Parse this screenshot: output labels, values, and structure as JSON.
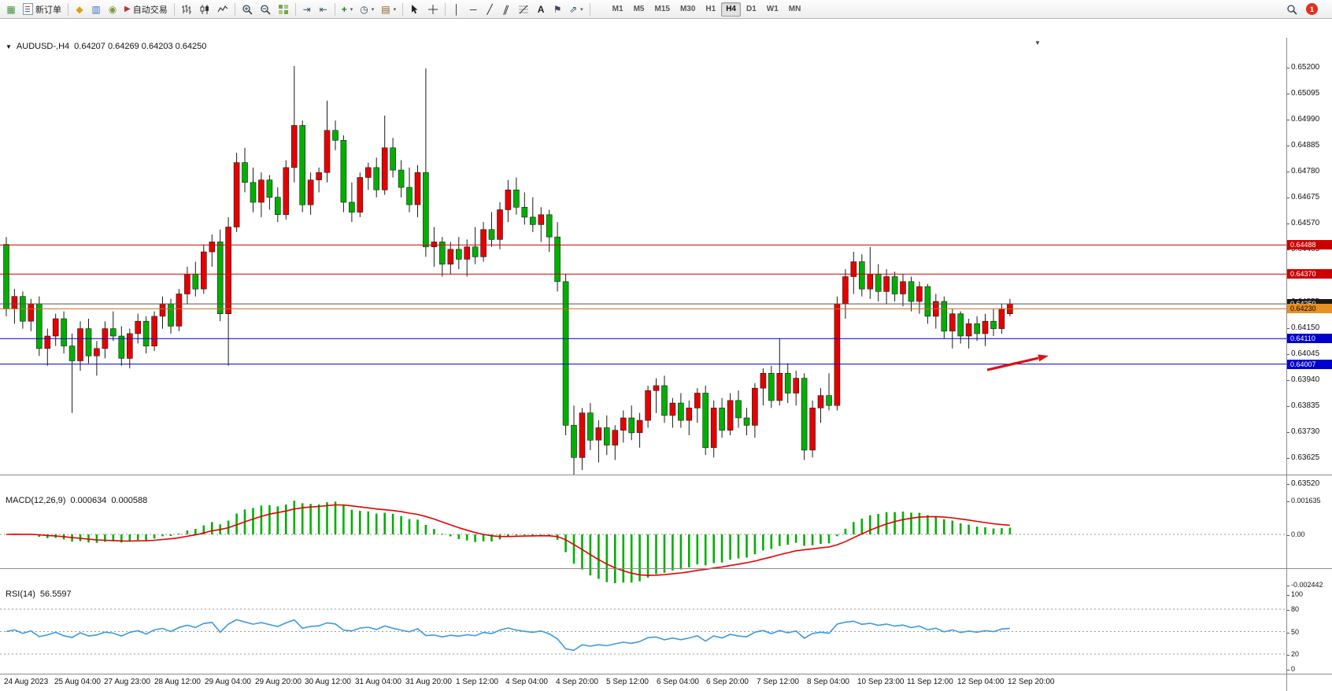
{
  "colors": {
    "bull": "#e60000",
    "bear": "#00b000",
    "wick": "#1a1a1a",
    "macd_hist": "#00b000",
    "macd_signal": "#e60000",
    "rsi_line": "#3b9ae1",
    "level_dash": "#9a9a9a",
    "arrow": "#dd1111",
    "badge_bg": "#e03020"
  },
  "toolbar": {
    "new_order_label": "新订单",
    "auto_trading_label": "自动交易",
    "timeframes": [
      "M1",
      "M5",
      "M15",
      "M30",
      "H1",
      "H4",
      "D1",
      "W1",
      "MN"
    ],
    "active_timeframe": "H4",
    "notification_badge": "1"
  },
  "chart": {
    "symbol_period": "AUDUSD-,H4",
    "ohlc": "0.64207 0.64269 0.64203 0.64250",
    "price_axis": [
      "0.65200",
      "0.65095",
      "0.64990",
      "0.64885",
      "0.64780",
      "0.64675",
      "0.64570",
      "0.64465",
      "0.64360",
      "0.64255",
      "0.64150",
      "0.64045",
      "0.63940",
      "0.63835",
      "0.63730",
      "0.63625",
      "0.63520"
    ],
    "time_axis": [
      "24 Aug 2023",
      "25 Aug 04:00",
      "27 Aug 23:00",
      "28 Aug 12:00",
      "29 Aug 04:00",
      "29 Aug 20:00",
      "30 Aug 12:00",
      "31 Aug 04:00",
      "31 Aug 20:00",
      "1 Sep 12:00",
      "4 Sep 04:00",
      "4 Sep 20:00",
      "5 Sep 12:00",
      "6 Sep 04:00",
      "6 Sep 20:00",
      "7 Sep 12:00",
      "8 Sep 04:00",
      "10 Sep 23:00",
      "11 Sep 12:00",
      "12 Sep 04:00",
      "12 Sep 20:00"
    ],
    "levels": [
      {
        "price": 0.64488,
        "label": "0.64488",
        "line": "#cc0000",
        "tag_bg": "#cc0000",
        "tag_fg": "#ffffff"
      },
      {
        "price": 0.6437,
        "label": "0.64370",
        "line": "#cc0000",
        "tag_bg": "#cc0000",
        "tag_fg": "#ffffff"
      },
      {
        "price": 0.6425,
        "label": "0.64250",
        "line": "#555555",
        "tag_bg": "#1a1a1a",
        "tag_fg": "#ffffff"
      },
      {
        "price": 0.6423,
        "label": "0.64230",
        "line": "#c87020",
        "tag_bg": "#e89020",
        "tag_fg": "#000000"
      },
      {
        "price": 0.6411,
        "label": "0.64110",
        "line": "#0000cc",
        "tag_bg": "#0000cc",
        "tag_fg": "#ffffff"
      },
      {
        "price": 0.64007,
        "label": "0.64007",
        "line": "#0000cc",
        "tag_bg": "#0000cc",
        "tag_fg": "#ffffff"
      }
    ],
    "chart_data": {
      "type": "candlestick",
      "price_unit": 0.0001,
      "note": "red = bullish, green = bearish (CN convention), values in 0.0001 units [open,high,low,close]",
      "candles": [
        [
          6449,
          6452,
          6420,
          6423
        ],
        [
          6423,
          6431,
          6417,
          6428
        ],
        [
          6428,
          6430,
          6415,
          6418
        ],
        [
          6418,
          6427,
          6414,
          6425
        ],
        [
          6425,
          6428,
          6404,
          6407
        ],
        [
          6407,
          6415,
          6400,
          6412
        ],
        [
          6412,
          6421,
          6408,
          6419
        ],
        [
          6419,
          6422,
          6405,
          6408
        ],
        [
          6408,
          6413,
          6381,
          6402
        ],
        [
          6402,
          6418,
          6398,
          6415
        ],
        [
          6415,
          6419,
          6401,
          6404
        ],
        [
          6404,
          6410,
          6396,
          6407
        ],
        [
          6407,
          6418,
          6403,
          6415
        ],
        [
          6415,
          6422,
          6410,
          6412
        ],
        [
          6412,
          6416,
          6400,
          6403
        ],
        [
          6403,
          6415,
          6399,
          6413
        ],
        [
          6413,
          6421,
          6409,
          6418
        ],
        [
          6418,
          6420,
          6405,
          6408
        ],
        [
          6408,
          6422,
          6406,
          6420
        ],
        [
          6420,
          6428,
          6415,
          6425
        ],
        [
          6425,
          6427,
          6413,
          6416
        ],
        [
          6416,
          6431,
          6414,
          6429
        ],
        [
          6429,
          6440,
          6425,
          6437
        ],
        [
          6437,
          6442,
          6428,
          6431
        ],
        [
          6431,
          6449,
          6429,
          6446
        ],
        [
          6446,
          6453,
          6440,
          6450
        ],
        [
          6450,
          6455,
          6418,
          6421
        ],
        [
          6421,
          6460,
          6400,
          6456
        ],
        [
          6456,
          6486,
          6454,
          6482
        ],
        [
          6482,
          6488,
          6470,
          6474
        ],
        [
          6474,
          6480,
          6462,
          6466
        ],
        [
          6466,
          6478,
          6460,
          6475
        ],
        [
          6475,
          6477,
          6463,
          6468
        ],
        [
          6468,
          6472,
          6458,
          6461
        ],
        [
          6461,
          6483,
          6459,
          6480
        ],
        [
          6480,
          6521,
          6474,
          6497
        ],
        [
          6497,
          6499,
          6462,
          6465
        ],
        [
          6465,
          6478,
          6461,
          6475
        ],
        [
          6475,
          6480,
          6470,
          6478
        ],
        [
          6478,
          6507,
          6474,
          6495
        ],
        [
          6495,
          6499,
          6487,
          6491
        ],
        [
          6491,
          6493,
          6462,
          6466
        ],
        [
          6466,
          6474,
          6458,
          6462
        ],
        [
          6462,
          6478,
          6460,
          6476
        ],
        [
          6476,
          6482,
          6471,
          6480
        ],
        [
          6480,
          6484,
          6468,
          6471
        ],
        [
          6471,
          6501,
          6469,
          6488
        ],
        [
          6488,
          6492,
          6476,
          6479
        ],
        [
          6479,
          6483,
          6468,
          6472
        ],
        [
          6472,
          6480,
          6462,
          6465
        ],
        [
          6465,
          6481,
          6460,
          6478
        ],
        [
          6478,
          6520,
          6444,
          6448
        ],
        [
          6448,
          6456,
          6440,
          6450
        ],
        [
          6450,
          6452,
          6436,
          6441
        ],
        [
          6441,
          6450,
          6437,
          6447
        ],
        [
          6447,
          6452,
          6439,
          6443
        ],
        [
          6443,
          6451,
          6436,
          6448
        ],
        [
          6448,
          6456,
          6441,
          6444
        ],
        [
          6444,
          6458,
          6442,
          6455
        ],
        [
          6455,
          6462,
          6448,
          6451
        ],
        [
          6451,
          6466,
          6447,
          6463
        ],
        [
          6463,
          6475,
          6458,
          6471
        ],
        [
          6471,
          6476,
          6461,
          6464
        ],
        [
          6464,
          6470,
          6457,
          6460
        ],
        [
          6460,
          6468,
          6454,
          6457
        ],
        [
          6457,
          6464,
          6450,
          6461
        ],
        [
          6461,
          6463,
          6446,
          6452
        ],
        [
          6452,
          6458,
          6430,
          6434
        ],
        [
          6434,
          6437,
          6372,
          6376
        ],
        [
          6376,
          6384,
          6356,
          6363
        ],
        [
          6363,
          6383,
          6358,
          6381
        ],
        [
          6381,
          6385,
          6366,
          6370
        ],
        [
          6370,
          6378,
          6361,
          6375
        ],
        [
          6375,
          6380,
          6364,
          6368
        ],
        [
          6368,
          6376,
          6362,
          6374
        ],
        [
          6374,
          6382,
          6369,
          6379
        ],
        [
          6379,
          6384,
          6370,
          6373
        ],
        [
          6373,
          6381,
          6367,
          6378
        ],
        [
          6378,
          6392,
          6375,
          6390
        ],
        [
          6390,
          6395,
          6381,
          6392
        ],
        [
          6392,
          6396,
          6377,
          6380
        ],
        [
          6380,
          6387,
          6375,
          6385
        ],
        [
          6385,
          6389,
          6375,
          6378
        ],
        [
          6378,
          6386,
          6372,
          6383
        ],
        [
          6383,
          6391,
          6377,
          6389
        ],
        [
          6389,
          6392,
          6364,
          6367
        ],
        [
          6367,
          6386,
          6363,
          6383
        ],
        [
          6383,
          6387,
          6371,
          6374
        ],
        [
          6374,
          6389,
          6372,
          6386
        ],
        [
          6386,
          6390,
          6375,
          6379
        ],
        [
          6379,
          6383,
          6372,
          6376
        ],
        [
          6376,
          6393,
          6371,
          6391
        ],
        [
          6391,
          6399,
          6384,
          6397
        ],
        [
          6397,
          6400,
          6383,
          6386
        ],
        [
          6386,
          6411,
          6384,
          6397
        ],
        [
          6397,
          6401,
          6385,
          6389
        ],
        [
          6389,
          6398,
          6384,
          6395
        ],
        [
          6395,
          6397,
          6362,
          6366
        ],
        [
          6366,
          6386,
          6363,
          6383
        ],
        [
          6383,
          6391,
          6377,
          6388
        ],
        [
          6388,
          6397,
          6382,
          6384
        ],
        [
          6384,
          6428,
          6382,
          6425
        ],
        [
          6425,
          6439,
          6419,
          6436
        ],
        [
          6436,
          6446,
          6429,
          6442
        ],
        [
          6442,
          6445,
          6428,
          6431
        ],
        [
          6431,
          6448,
          6427,
          6437
        ],
        [
          6437,
          6441,
          6426,
          6430
        ],
        [
          6430,
          6439,
          6425,
          6436
        ],
        [
          6436,
          6438,
          6426,
          6429
        ],
        [
          6429,
          6437,
          6424,
          6434
        ],
        [
          6434,
          6436,
          6422,
          6426
        ],
        [
          6426,
          6434,
          6421,
          6432
        ],
        [
          6432,
          6433,
          6417,
          6420
        ],
        [
          6420,
          6429,
          6415,
          6426
        ],
        [
          6426,
          6428,
          6411,
          6414
        ],
        [
          6414,
          6423,
          6407,
          6421
        ],
        [
          6421,
          6422,
          6409,
          6412
        ],
        [
          6412,
          6419,
          6407,
          6417
        ],
        [
          6417,
          6420,
          6410,
          6413
        ],
        [
          6413,
          6421,
          6408,
          6418
        ],
        [
          6418,
          6423,
          6412,
          6415
        ],
        [
          6415,
          6425,
          6413,
          6423
        ],
        [
          6421,
          6427,
          6420,
          6425
        ]
      ]
    }
  },
  "macd": {
    "label": "MACD(12,26,9)",
    "value1": "0.000634",
    "value2": "0.000588",
    "axis": [
      "0.001635",
      "0.00",
      "-0.002442"
    ]
  },
  "rsi": {
    "label": "RSI(14)",
    "value": "56.5597",
    "axis": [
      "100",
      "80",
      "50",
      "20",
      "0"
    ],
    "levels": [
      80,
      50,
      20
    ]
  }
}
